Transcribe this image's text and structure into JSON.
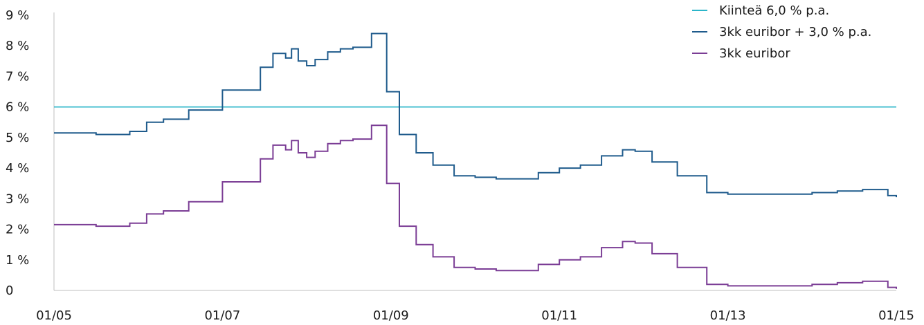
{
  "chart_data": {
    "type": "line",
    "title": "",
    "xlabel": "",
    "ylabel": "",
    "ylim": [
      0,
      9
    ],
    "xlim": [
      2005.0,
      2015.0
    ],
    "y_ticks": [
      0,
      1,
      2,
      3,
      4,
      5,
      6,
      7,
      8,
      9
    ],
    "y_tick_labels": [
      "0",
      "1 %",
      "2 %",
      "3 %",
      "4 %",
      "5 %",
      "6 %",
      "7 %",
      "8 %",
      "9 %"
    ],
    "x_ticks": [
      2005,
      2007,
      2009,
      2011,
      2013,
      2015
    ],
    "x_tick_labels": [
      "01/05",
      "01/07",
      "01/09",
      "01/11",
      "01/13",
      "01/15"
    ],
    "grid": false,
    "legend_position": "top-right",
    "series": [
      {
        "name": "Kiinteä 6,0 % p.a.",
        "color": "#2bb5c9",
        "x": [
          2005.0,
          2015.0
        ],
        "y": [
          6.0,
          6.0
        ]
      },
      {
        "name": "3kk euribor + 3,0 % p.a.",
        "color": "#1f5b8c",
        "x": [
          2005.0,
          2005.5,
          2005.9,
          2006.1,
          2006.3,
          2006.6,
          2007.0,
          2007.45,
          2007.6,
          2007.75,
          2007.82,
          2007.9,
          2008.0,
          2008.1,
          2008.25,
          2008.4,
          2008.55,
          2008.7,
          2008.77,
          2008.95,
          2009.1,
          2009.3,
          2009.5,
          2009.75,
          2010.0,
          2010.25,
          2010.5,
          2010.75,
          2011.0,
          2011.25,
          2011.5,
          2011.75,
          2011.9,
          2012.1,
          2012.4,
          2012.75,
          2013.0,
          2013.5,
          2014.0,
          2014.3,
          2014.6,
          2014.9,
          2015.0
        ],
        "y": [
          5.15,
          5.1,
          5.2,
          5.5,
          5.6,
          5.9,
          6.55,
          7.3,
          7.75,
          7.6,
          7.9,
          7.5,
          7.35,
          7.55,
          7.8,
          7.9,
          7.95,
          7.95,
          8.4,
          6.5,
          5.1,
          4.5,
          4.1,
          3.75,
          3.7,
          3.65,
          3.65,
          3.85,
          4.0,
          4.1,
          4.4,
          4.6,
          4.55,
          4.2,
          3.75,
          3.2,
          3.15,
          3.15,
          3.2,
          3.25,
          3.3,
          3.1,
          3.05
        ]
      },
      {
        "name": "3kk euribor",
        "color": "#7b3d95",
        "x": [
          2005.0,
          2005.5,
          2005.9,
          2006.1,
          2006.3,
          2006.6,
          2007.0,
          2007.45,
          2007.6,
          2007.75,
          2007.82,
          2007.9,
          2008.0,
          2008.1,
          2008.25,
          2008.4,
          2008.55,
          2008.7,
          2008.77,
          2008.95,
          2009.1,
          2009.3,
          2009.5,
          2009.75,
          2010.0,
          2010.25,
          2010.5,
          2010.75,
          2011.0,
          2011.25,
          2011.5,
          2011.75,
          2011.9,
          2012.1,
          2012.4,
          2012.75,
          2013.0,
          2013.5,
          2014.0,
          2014.3,
          2014.6,
          2014.9,
          2015.0
        ],
        "y": [
          2.15,
          2.1,
          2.2,
          2.5,
          2.6,
          2.9,
          3.55,
          4.3,
          4.75,
          4.6,
          4.9,
          4.5,
          4.35,
          4.55,
          4.8,
          4.9,
          4.95,
          4.95,
          5.4,
          3.5,
          2.1,
          1.5,
          1.1,
          0.75,
          0.7,
          0.65,
          0.65,
          0.85,
          1.0,
          1.1,
          1.4,
          1.6,
          1.55,
          1.2,
          0.75,
          0.2,
          0.15,
          0.15,
          0.2,
          0.25,
          0.3,
          0.1,
          0.05
        ]
      }
    ]
  }
}
